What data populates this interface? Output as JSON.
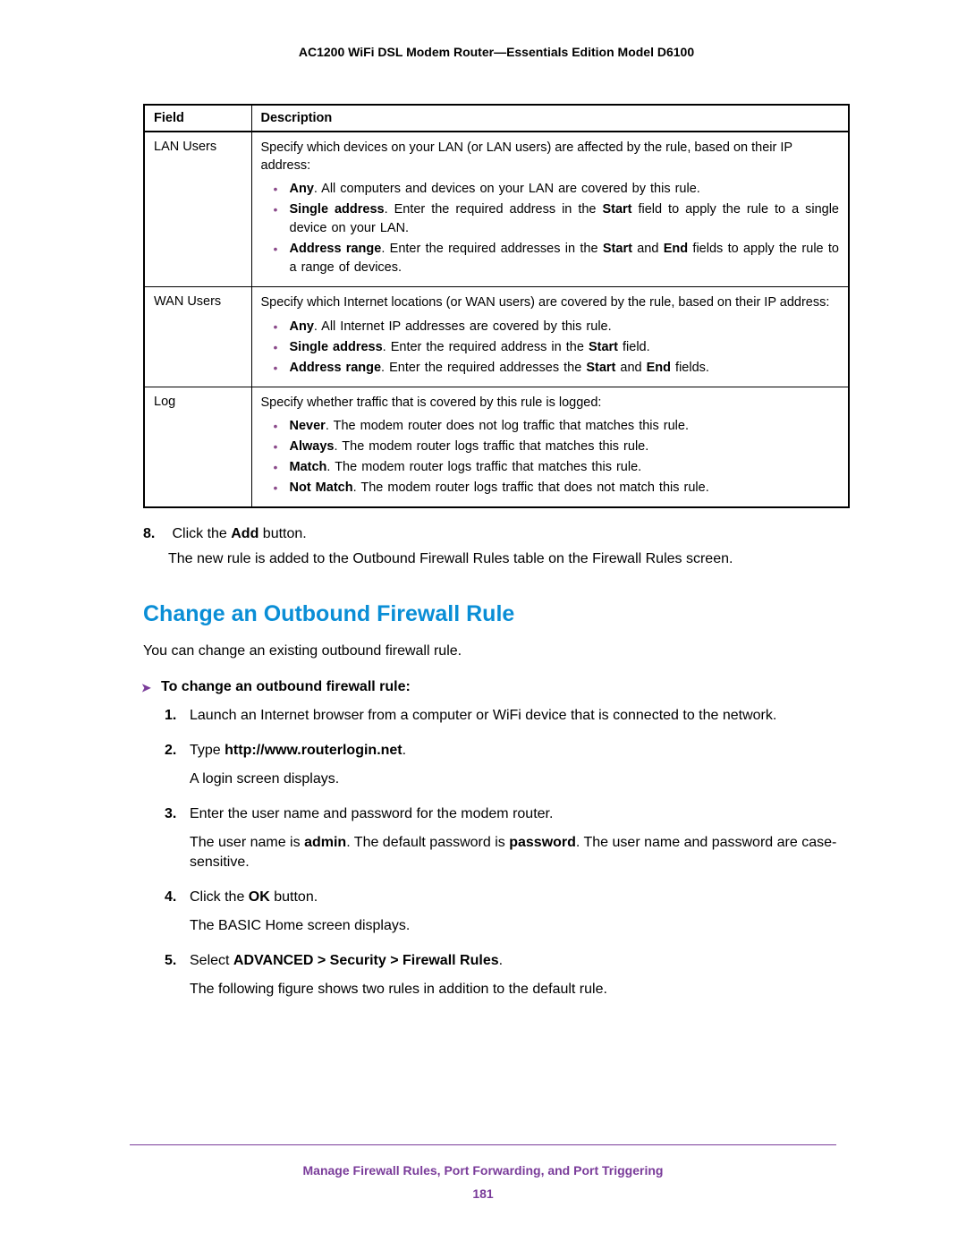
{
  "header": {
    "title": "AC1200 WiFi DSL Modem Router—Essentials Edition Model D6100"
  },
  "table": {
    "columns": {
      "field": "Field",
      "description": "Description"
    },
    "rows": [
      {
        "field": "LAN Users",
        "intro": "Specify which devices on your LAN (or LAN users) are affected by the rule, based on their IP address:",
        "bullets": [
          {
            "bold": "Any",
            "rest": ". All computers and devices on your LAN are covered by this rule."
          },
          {
            "bold": "Single address",
            "rest_html": ". Enter the required address in the <b>Start</b> field to apply the rule to a single device on your LAN."
          },
          {
            "bold": "Address range",
            "rest_html": ". Enter the required addresses in the <b>Start</b> and <b>End</b> fields to apply the rule to a range of devices."
          }
        ]
      },
      {
        "field": "WAN Users",
        "intro": "Specify which Internet locations (or WAN users) are covered by the rule, based on their IP address:",
        "bullets": [
          {
            "bold": "Any",
            "rest": ". All Internet IP addresses are covered by this rule."
          },
          {
            "bold": "Single address",
            "rest_html": ". Enter the required address in the <b>Start</b> field."
          },
          {
            "bold": "Address range",
            "rest_html": ". Enter the required addresses the <b>Start</b> and <b>End</b> fields."
          }
        ]
      },
      {
        "field": "Log",
        "intro": "Specify whether traffic that is covered by this rule is logged:",
        "bullets": [
          {
            "bold": "Never",
            "rest": ". The modem router does not log traffic that matches this rule."
          },
          {
            "bold": "Always",
            "rest": ". The modem router logs traffic that matches this rule."
          },
          {
            "bold": "Match",
            "rest": ". The modem router logs traffic that matches this rule."
          },
          {
            "bold": "Not Match",
            "rest": ". The modem router logs traffic that does not match this rule."
          }
        ]
      }
    ]
  },
  "step8": {
    "num": "8.",
    "line1_pre": "Click the ",
    "line1_bold": "Add",
    "line1_post": " button.",
    "line2": "The new rule is added to the Outbound Firewall Rules table on the Firewall Rules screen."
  },
  "section": {
    "title": "Change an Outbound Firewall Rule",
    "intro": "You can change an existing outbound firewall rule.",
    "procedure_heading": "To change an outbound firewall rule:",
    "steps": [
      {
        "n": "1.",
        "html": "Launch an Internet browser from a computer or WiFi device that is connected to the network."
      },
      {
        "n": "2.",
        "html": "Type <b>http://www.routerlogin.net</b>.",
        "sub": "A login screen displays."
      },
      {
        "n": "3.",
        "html": "Enter the user name and password for the modem router.",
        "sub_html": "The user name is <b>admin</b>. The default password is <b>password</b>. The user name and password are case-sensitive."
      },
      {
        "n": "4.",
        "html": "Click the <b>OK</b> button.",
        "sub": "The BASIC Home screen displays."
      },
      {
        "n": "5.",
        "html": "Select <b>ADVANCED > Security > Firewall Rules</b>.",
        "sub": "The following figure shows two rules in addition to the default rule."
      }
    ]
  },
  "footer": {
    "title": "Manage Firewall Rules, Port Forwarding, and Port Triggering",
    "page": "181"
  },
  "colors": {
    "heading_blue": "#0a8ed6",
    "accent_purple": "#7a3c9a",
    "bullet_purple": "#8a4a8a",
    "text": "#000000",
    "background": "#ffffff"
  }
}
